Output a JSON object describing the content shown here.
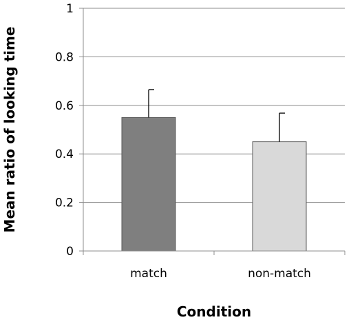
{
  "chart_data": {
    "type": "bar",
    "title": "",
    "xlabel": "Condition",
    "ylabel": "Mean ratio of looking time",
    "categories": [
      "match",
      "non-match"
    ],
    "values": [
      0.55,
      0.45
    ],
    "error_bars": [
      0.115,
      0.118
    ],
    "bar_colors": [
      "#7f7f7f",
      "#d9d9d9"
    ],
    "ylim": [
      0,
      1
    ],
    "yticks": [
      "0",
      "0.2",
      "0.4",
      "0.6",
      "0.8",
      "1"
    ],
    "grid": true,
    "legend": "none"
  }
}
